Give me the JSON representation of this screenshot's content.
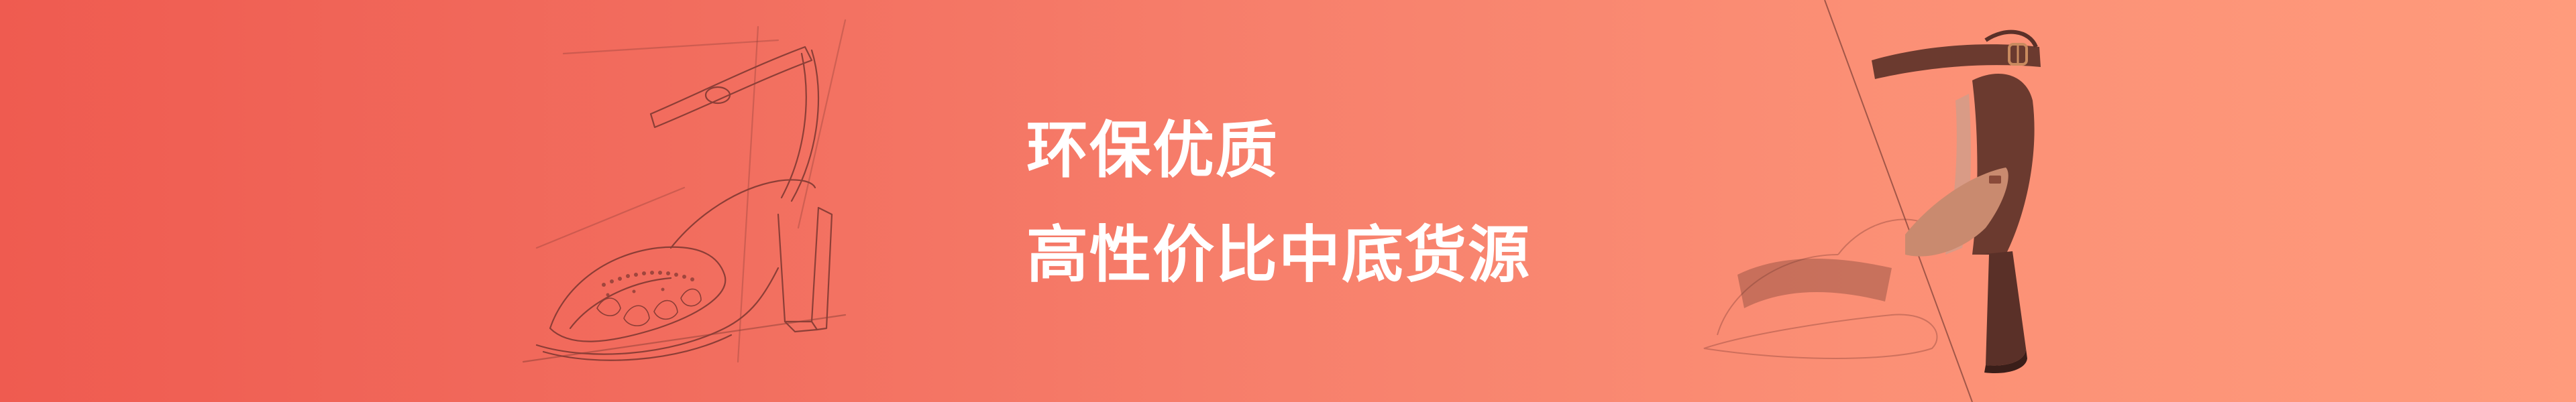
{
  "banner": {
    "headline_line1": "环保优质",
    "headline_line2": "高性价比中底货源"
  },
  "colors": {
    "gradient_start": "#ef5b50",
    "gradient_end": "#ff9b7c",
    "text": "#ffffff",
    "sketch_stroke": "#6a2f2a",
    "shoe_suede": "#6b3a2f",
    "strap_buckle": "#c98a5f"
  },
  "icons": {
    "left_illustration": "shoe-sketch-icon",
    "right_illustration": "shoe-photo-icon"
  }
}
